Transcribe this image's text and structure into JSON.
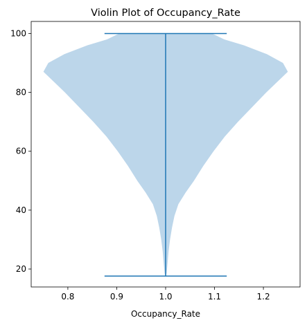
{
  "chart_data": {
    "type": "violin",
    "title": "Violin Plot of Occupancy_Rate",
    "xlabel": "Occupancy_Rate",
    "ylabel": "",
    "position": 1.0,
    "xlim": [
      0.725,
      1.275
    ],
    "ylim": [
      13.9,
      104.1
    ],
    "xticks": [
      0.8,
      0.9,
      1.0,
      1.1,
      1.2
    ],
    "yticks": [
      20,
      40,
      60,
      80,
      100
    ],
    "min": 17.6,
    "max": 100,
    "cap_halfwidth": 0.125,
    "body_color": "#bcd6ea",
    "line_color": "#1f77b4",
    "density_profile": [
      {
        "y": 18.5,
        "halfwidth": 0.002
      },
      {
        "y": 22,
        "halfwidth": 0.004
      },
      {
        "y": 26,
        "halfwidth": 0.006
      },
      {
        "y": 30,
        "halfwidth": 0.009
      },
      {
        "y": 34,
        "halfwidth": 0.013
      },
      {
        "y": 38,
        "halfwidth": 0.018
      },
      {
        "y": 42,
        "halfwidth": 0.026
      },
      {
        "y": 46,
        "halfwidth": 0.041
      },
      {
        "y": 50,
        "halfwidth": 0.058
      },
      {
        "y": 55,
        "halfwidth": 0.077
      },
      {
        "y": 60,
        "halfwidth": 0.098
      },
      {
        "y": 65,
        "halfwidth": 0.121
      },
      {
        "y": 70,
        "halfwidth": 0.148
      },
      {
        "y": 75,
        "halfwidth": 0.177
      },
      {
        "y": 80,
        "halfwidth": 0.206
      },
      {
        "y": 84,
        "halfwidth": 0.231
      },
      {
        "y": 87,
        "halfwidth": 0.25
      },
      {
        "y": 90,
        "halfwidth": 0.24
      },
      {
        "y": 93,
        "halfwidth": 0.207
      },
      {
        "y": 96,
        "halfwidth": 0.16
      },
      {
        "y": 98,
        "halfwidth": 0.12
      },
      {
        "y": 100,
        "halfwidth": 0.095
      }
    ]
  }
}
